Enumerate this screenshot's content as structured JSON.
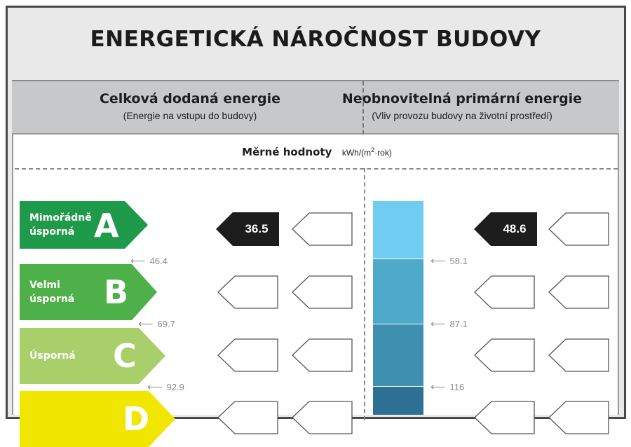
{
  "title": "ENERGETICKÁ NÁROČNOST BUDOVY",
  "left_column": {
    "heading": "Celková dodaná energie",
    "subheading": "(Energie na vstupu do budovy)",
    "value": "36.5",
    "thresholds": [
      "46.4",
      "69.7",
      "92.9"
    ]
  },
  "right_column": {
    "heading": "Neobnovitelná primární energie",
    "subheading": "(Vliv provozu budovy na životní prostředí)",
    "value": "48.6",
    "thresholds": [
      "58.1",
      "87.1",
      "116"
    ]
  },
  "units": {
    "label": "Měrné hodnoty",
    "unit_prefix": "kWh/(m",
    "unit_exp": "2",
    "unit_suffix": "·rok)"
  },
  "classes": [
    {
      "letter": "A",
      "line1": "Mimořádně",
      "line2": "úsporná",
      "color": "#1e9a4a"
    },
    {
      "letter": "B",
      "line1": "Velmi",
      "line2": "úsporná",
      "color": "#4eb048"
    },
    {
      "letter": "C",
      "line1": "Úsporná",
      "line2": "",
      "color": "#a8cf6a"
    },
    {
      "letter": "D",
      "line1": "",
      "line2": "",
      "color": "#f0e600"
    }
  ],
  "colors": {
    "value_tag": "#1d1d1d",
    "bar_a": "#6fcdf1",
    "bar_b": "#4fa9c9",
    "bar_c": "#3f8fb0",
    "bar_d": "#2f7194"
  }
}
